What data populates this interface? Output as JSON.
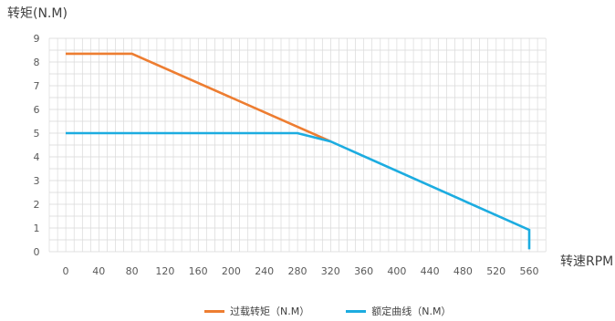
{
  "chart_data": {
    "type": "line",
    "ylabel": "转矩(N.M)",
    "xlabel": "转速RPM",
    "xlim": [
      0,
      560
    ],
    "ylim": [
      0,
      9
    ],
    "x_ticks": [
      "0",
      "40",
      "80",
      "120",
      "160",
      "200",
      "240",
      "280",
      "320",
      "360",
      "400",
      "440",
      "480",
      "520",
      "560"
    ],
    "y_ticks": [
      "0",
      "1",
      "2",
      "3",
      "4",
      "5",
      "6",
      "7",
      "8",
      "9"
    ],
    "grid": true,
    "legend_position": "bottom",
    "series": [
      {
        "name": "过载转矩（N.M）",
        "color": "#ED7D31",
        "points": [
          [
            0,
            8.35
          ],
          [
            80,
            8.35
          ],
          [
            320,
            4.65
          ]
        ]
      },
      {
        "name": "额定曲线（N.M）",
        "color": "#1CACE0",
        "points": [
          [
            0,
            5.0
          ],
          [
            280,
            5.0
          ],
          [
            320,
            4.65
          ],
          [
            560,
            0.92
          ],
          [
            560,
            0.1
          ]
        ]
      }
    ]
  }
}
